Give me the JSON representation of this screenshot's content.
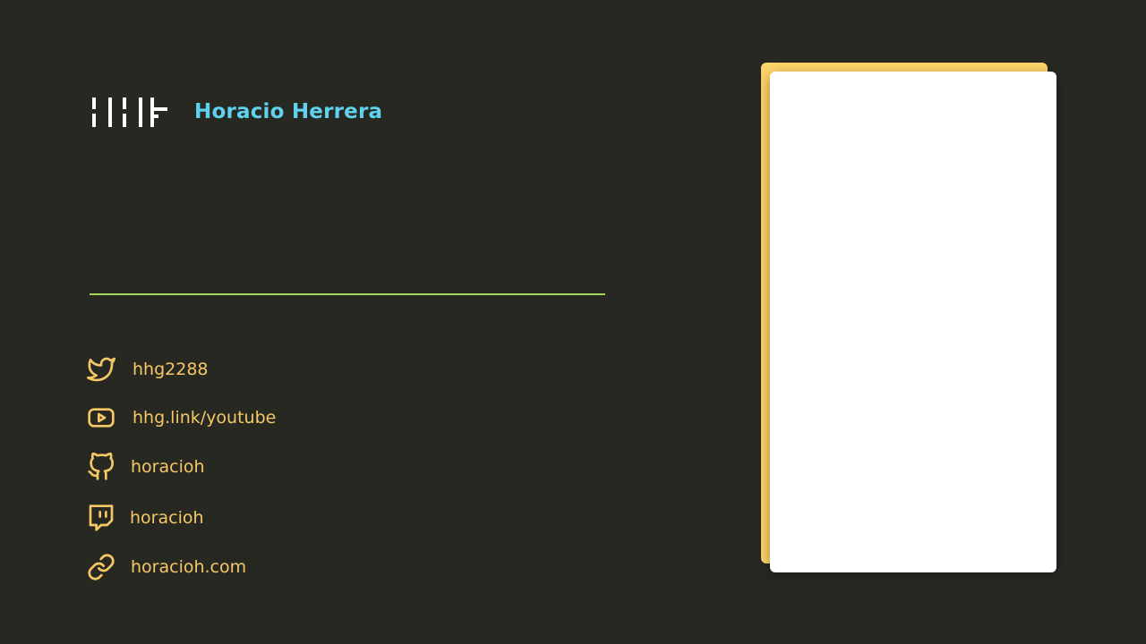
{
  "header": {
    "logo_icon": "hh-monogram-logo",
    "author_name": "Horacio Herrera"
  },
  "colors": {
    "background": "#282823",
    "name": "#5fd2ee",
    "divider": "#a3d65a",
    "links": "#f5c865",
    "card_accent": "#fdd36b",
    "card": "#ffffff"
  },
  "social": [
    {
      "icon": "twitter-icon",
      "label": "hhg2288"
    },
    {
      "icon": "youtube-icon",
      "label": "hhg.link/youtube"
    },
    {
      "icon": "github-icon",
      "label": "horacioh"
    },
    {
      "icon": "twitch-icon",
      "label": "horacioh"
    },
    {
      "icon": "link-icon",
      "label": "horacioh.com"
    }
  ]
}
